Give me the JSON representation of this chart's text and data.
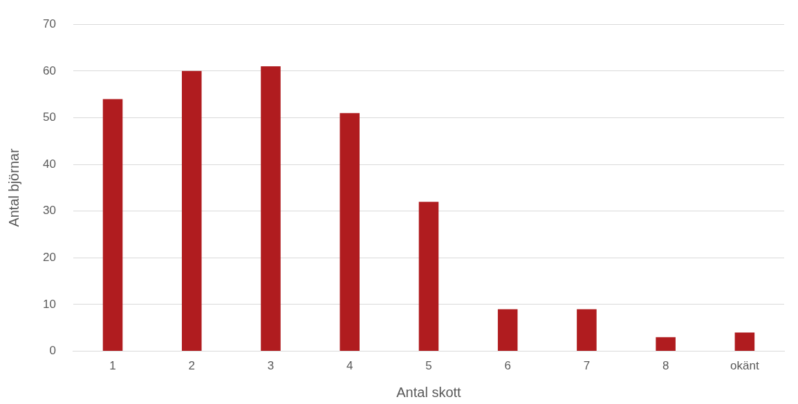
{
  "chart_data": {
    "type": "bar",
    "xlabel": "Antal skott",
    "ylabel": "Antal björnar",
    "categories": [
      "1",
      "2",
      "3",
      "4",
      "5",
      "6",
      "7",
      "8",
      "okänt"
    ],
    "values": [
      54,
      60,
      61,
      51,
      32,
      9,
      9,
      3,
      4
    ],
    "color": "#b01c1f",
    "ylim": [
      0,
      70
    ],
    "yticks": [
      0,
      10,
      20,
      30,
      40,
      50,
      60,
      70
    ],
    "grid": "y"
  }
}
